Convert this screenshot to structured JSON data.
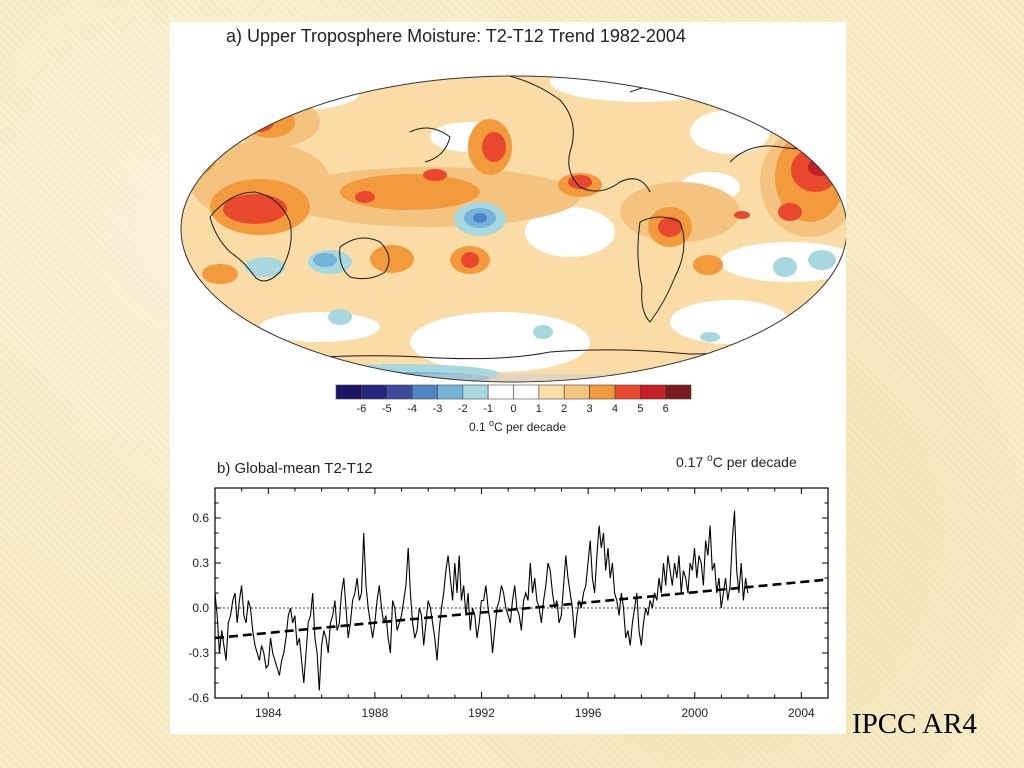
{
  "slide_caption": "IPCC AR4",
  "chart_data": [
    {
      "type": "heatmap",
      "title": "a) Upper Troposphere Moisture:  T2-T12 Trend 1982-2004",
      "colorbar": {
        "ticks": [
          "-6",
          "-5",
          "-4",
          "-3",
          "-2",
          "-1",
          "0",
          "1",
          "2",
          "3",
          "4",
          "5",
          "6"
        ],
        "label_prefix": "0.1 ",
        "label_sup": "o",
        "label_suffix": "C per decade",
        "colors": [
          "#1c1763",
          "#26287f",
          "#3f4a9e",
          "#4f85c4",
          "#74b4d8",
          "#a8d8df",
          "#ffffff",
          "#ffffff",
          "#fbdca7",
          "#f5c380",
          "#f29a3c",
          "#e8492e",
          "#c51f27",
          "#7a1a1a"
        ]
      }
    },
    {
      "type": "line",
      "title": "b) Global-mean T2-T12",
      "trend_label_prefix": "0.17 ",
      "trend_label_sup": "o",
      "trend_label_suffix": "C per decade",
      "xlim": [
        1982,
        2005
      ],
      "ylim": [
        -0.6,
        0.8
      ],
      "x_ticks": [
        1984,
        1988,
        1992,
        1996,
        2000,
        2004
      ],
      "y_ticks": [
        -0.6,
        -0.3,
        0.0,
        0.3,
        0.6
      ],
      "y_tick_labels": [
        "-0.6",
        "-0.3",
        "0.0",
        "0.3",
        "0.6"
      ],
      "trend_line": {
        "x": [
          1982,
          2005
        ],
        "y": [
          -0.2,
          0.19
        ]
      },
      "series": [
        {
          "x_start": 1982.0,
          "x_step": 0.0833,
          "values": [
            0.1,
            -0.05,
            -0.3,
            -0.15,
            -0.25,
            -0.35,
            -0.1,
            -0.05,
            0.05,
            0.1,
            -0.1,
            0.05,
            0.15,
            -0.05,
            -0.1,
            0.05,
            0.0,
            -0.15,
            -0.25,
            -0.3,
            -0.35,
            -0.25,
            -0.3,
            -0.4,
            -0.38,
            -0.2,
            -0.3,
            -0.35,
            -0.4,
            -0.45,
            -0.35,
            -0.3,
            -0.2,
            -0.05,
            0.0,
            -0.1,
            -0.05,
            -0.25,
            -0.2,
            -0.35,
            -0.5,
            -0.3,
            -0.1,
            -0.05,
            0.1,
            -0.2,
            -0.3,
            -0.55,
            -0.25,
            -0.15,
            -0.2,
            -0.3,
            -0.1,
            -0.05,
            0.05,
            -0.15,
            -0.1,
            0.1,
            0.2,
            0.0,
            -0.2,
            -0.1,
            0.05,
            0.1,
            0.2,
            0.05,
            0.1,
            0.5,
            0.15,
            0.0,
            -0.1,
            -0.2,
            -0.1,
            0.05,
            0.15,
            0.0,
            -0.1,
            -0.05,
            -0.2,
            -0.3,
            0.05,
            0.0,
            -0.15,
            -0.1,
            -0.05,
            0.05,
            0.15,
            0.4,
            0.1,
            -0.1,
            -0.2,
            -0.15,
            0.0,
            -0.05,
            -0.25,
            -0.1,
            0.05,
            0.0,
            -0.1,
            -0.2,
            -0.35,
            -0.15,
            0.0,
            0.1,
            0.25,
            0.35,
            0.2,
            0.05,
            0.3,
            0.1,
            0.35,
            0.05,
            0.15,
            -0.05,
            0.1,
            -0.15,
            0.0,
            -0.05,
            -0.2,
            -0.1,
            0.05,
            0.05,
            0.15,
            0.0,
            -0.1,
            -0.3,
            -0.15,
            0.0,
            0.05,
            0.15,
            0.1,
            0.0,
            -0.05,
            -0.1,
            0.05,
            0.15,
            0.0,
            -0.05,
            -0.15,
            0.05,
            0.1,
            0.05,
            0.3,
            0.1,
            0.2,
            0.05,
            0.0,
            -0.1,
            0.05,
            0.15,
            0.3,
            0.25,
            0.1,
            0.0,
            0.05,
            -0.1,
            -0.05,
            0.15,
            0.35,
            0.2,
            0.1,
            0.0,
            -0.2,
            -0.05,
            0.05,
            0.0,
            0.1,
            0.15,
            0.3,
            0.45,
            0.2,
            0.1,
            0.35,
            0.55,
            0.4,
            0.5,
            0.25,
            0.4,
            0.2,
            0.3,
            0.1,
            0.05,
            -0.05,
            0.1,
            0.0,
            -0.2,
            -0.15,
            -0.25,
            -0.1,
            0.0,
            0.1,
            -0.15,
            -0.25,
            -0.1,
            0.0,
            -0.05,
            0.05,
            0.0,
            0.1,
            0.05,
            0.2,
            0.1,
            0.3,
            0.15,
            0.35,
            0.25,
            0.15,
            0.3,
            0.2,
            0.35,
            0.1,
            0.25,
            0.2,
            0.1,
            0.3,
            0.25,
            0.4,
            0.2,
            0.35,
            0.3,
            0.15,
            0.45,
            0.35,
            0.55,
            0.25,
            0.3,
            0.1,
            0.2,
            0.0,
            0.1,
            0.2,
            0.05,
            0.15,
            0.45,
            0.65,
            0.25,
            0.1,
            0.3,
            0.05,
            0.2,
            0.1
          ]
        }
      ]
    }
  ]
}
